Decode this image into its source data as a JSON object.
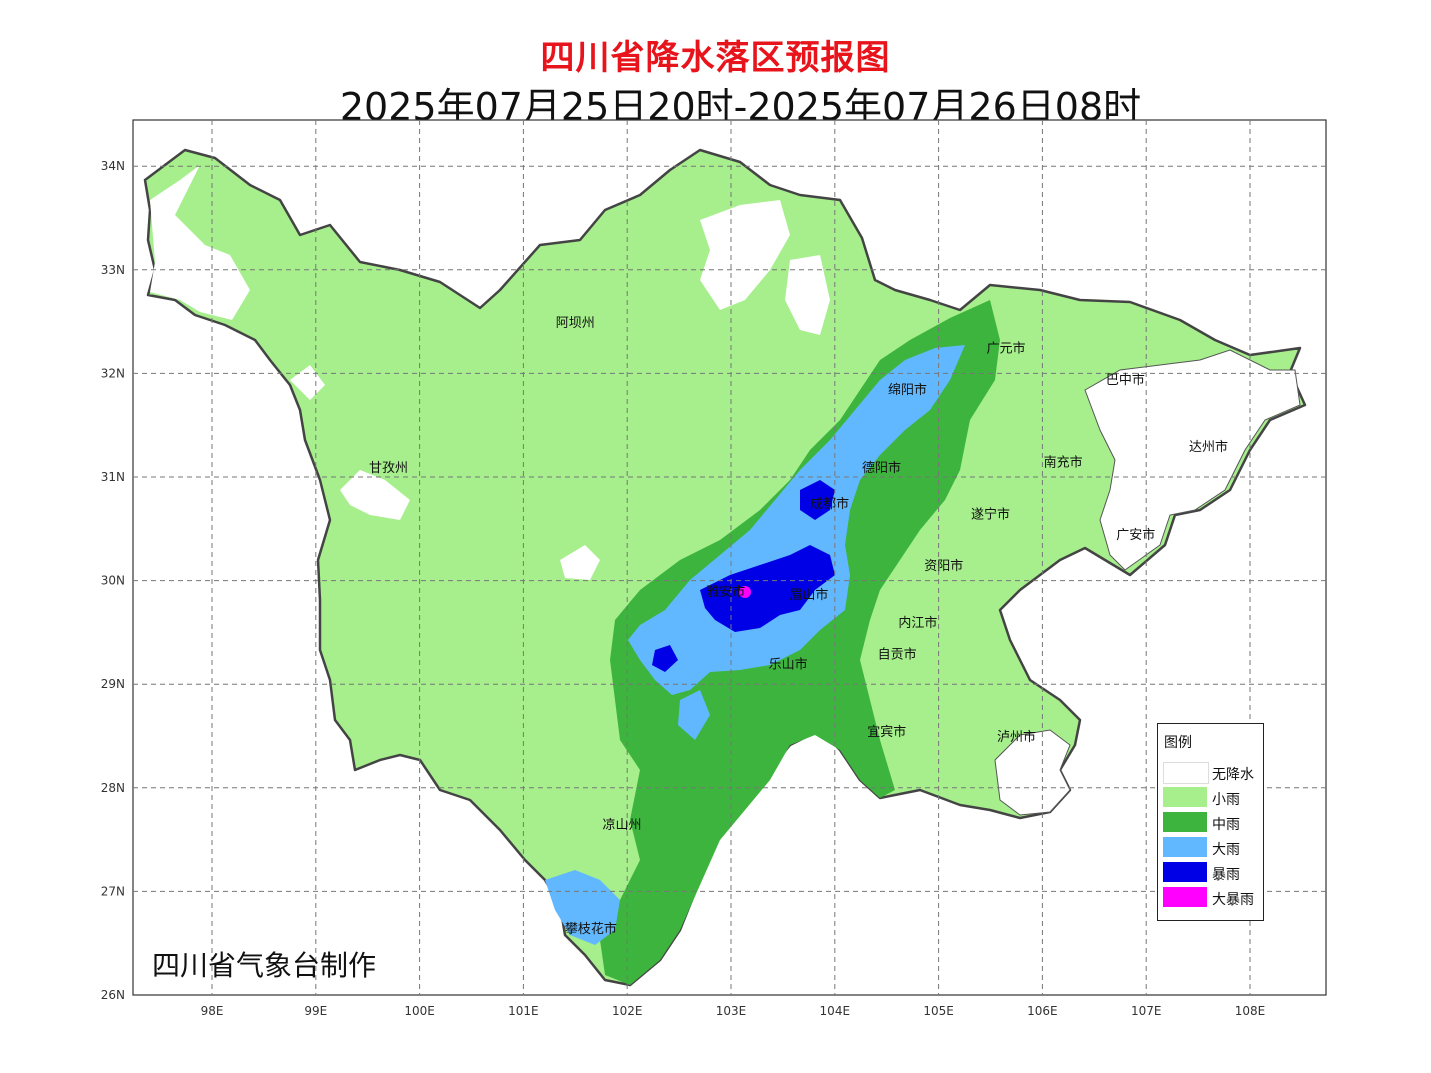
{
  "title": "四川省降水落区预报图",
  "subtitle": "2025年07月25日20时-2025年07月26日08时",
  "credit": "四川省气象台制作",
  "axes": {
    "lon_ticks": [
      "98E",
      "99E",
      "100E",
      "101E",
      "102E",
      "103E",
      "104E",
      "105E",
      "106E",
      "107E",
      "108E"
    ],
    "lat_ticks": [
      "34N",
      "33N",
      "32N",
      "31N",
      "30N",
      "29N",
      "28N",
      "27N",
      "26N"
    ]
  },
  "legend": {
    "title": "图例",
    "items": [
      {
        "label": "无降水",
        "color": "#ffffff"
      },
      {
        "label": "小雨",
        "color": "#a6ef8c"
      },
      {
        "label": "中雨",
        "color": "#3db43d"
      },
      {
        "label": "大雨",
        "color": "#61b8ff"
      },
      {
        "label": "暴雨",
        "color": "#0000e6"
      },
      {
        "label": "大暴雨",
        "color": "#ff00ff"
      }
    ]
  },
  "cities": [
    {
      "name": "阿坝州",
      "lon": 101.5,
      "lat": 32.45
    },
    {
      "name": "甘孜州",
      "lon": 99.7,
      "lat": 31.05
    },
    {
      "name": "广元市",
      "lon": 105.65,
      "lat": 32.2
    },
    {
      "name": "巴中市",
      "lon": 106.8,
      "lat": 31.9
    },
    {
      "name": "绵阳市",
      "lon": 104.7,
      "lat": 31.8
    },
    {
      "name": "达州市",
      "lon": 107.6,
      "lat": 31.25
    },
    {
      "name": "德阳市",
      "lon": 104.45,
      "lat": 31.05
    },
    {
      "name": "南充市",
      "lon": 106.2,
      "lat": 31.1
    },
    {
      "name": "成都市",
      "lon": 103.95,
      "lat": 30.7
    },
    {
      "name": "遂宁市",
      "lon": 105.5,
      "lat": 30.6
    },
    {
      "name": "广安市",
      "lon": 106.9,
      "lat": 30.4
    },
    {
      "name": "资阳市",
      "lon": 105.05,
      "lat": 30.1
    },
    {
      "name": "雅安市",
      "lon": 102.95,
      "lat": 29.85
    },
    {
      "name": "眉山市",
      "lon": 103.75,
      "lat": 29.82
    },
    {
      "name": "内江市",
      "lon": 104.8,
      "lat": 29.55
    },
    {
      "name": "乐山市",
      "lon": 103.55,
      "lat": 29.15
    },
    {
      "name": "自贡市",
      "lon": 104.6,
      "lat": 29.25
    },
    {
      "name": "宜宾市",
      "lon": 104.5,
      "lat": 28.5
    },
    {
      "name": "泸州市",
      "lon": 105.75,
      "lat": 28.45
    },
    {
      "name": "凉山州",
      "lon": 101.95,
      "lat": 27.6
    },
    {
      "name": "攀枝花市",
      "lon": 101.65,
      "lat": 26.6
    }
  ]
}
